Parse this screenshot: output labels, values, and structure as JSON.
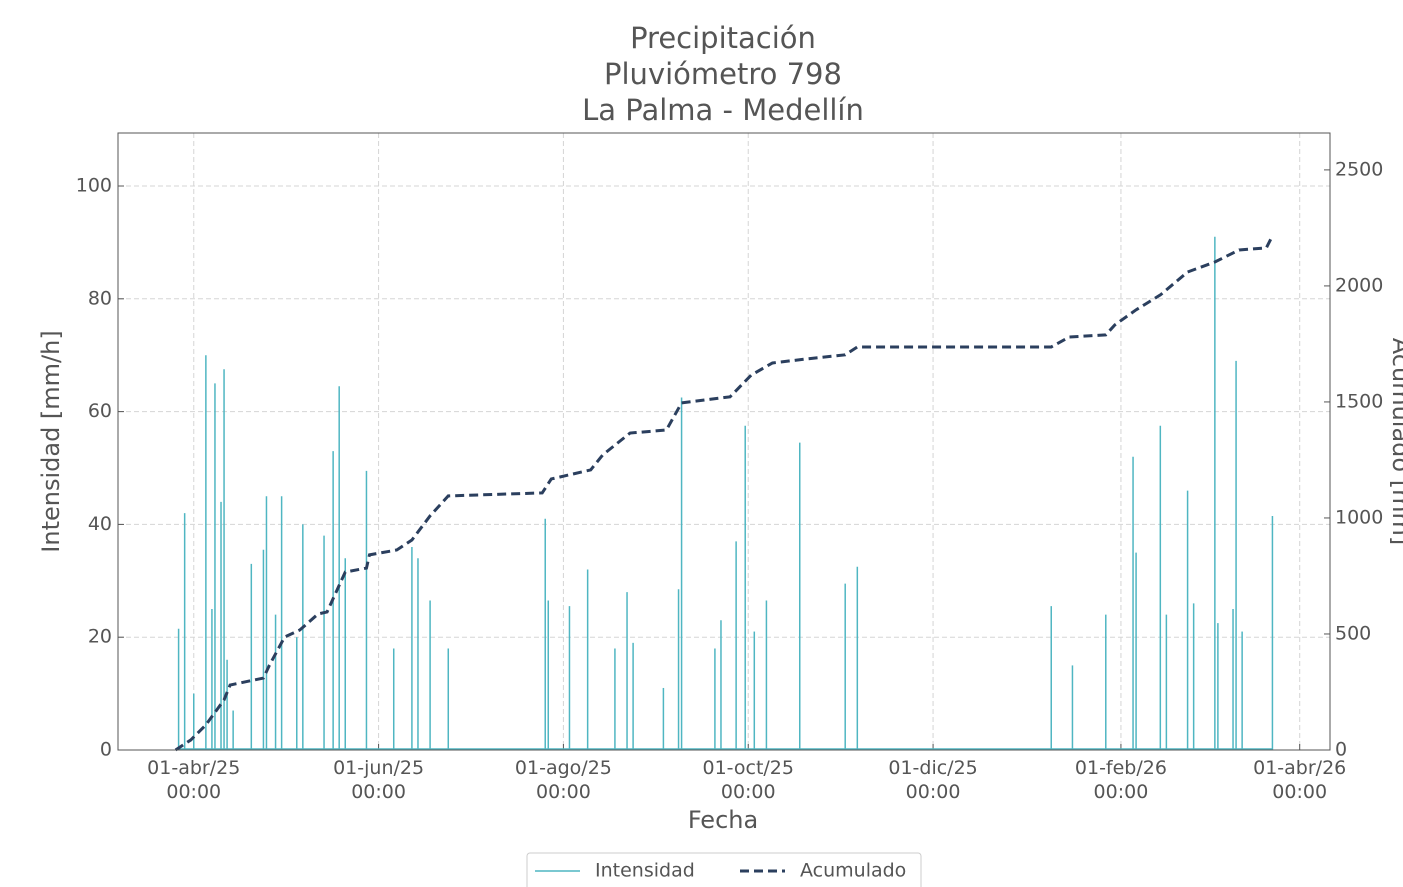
{
  "chart_data": {
    "type": "line",
    "title": "Precipitación\nPluviómetro 798\nLa Palma - Medellín",
    "xlabel": "Fecha",
    "ylabel": "Intensidad [mm/h]",
    "y2label": "Acumulado [mm]",
    "xlim": [
      "2025-03-07",
      "2026-04-11"
    ],
    "xticks": [
      {
        "value": "2025-04-01",
        "label": "01-abr/25\n00:00"
      },
      {
        "value": "2025-06-01",
        "label": "01-jun/25\n00:00"
      },
      {
        "value": "2025-08-01",
        "label": "01-ago/25\n00:00"
      },
      {
        "value": "2025-10-01",
        "label": "01-oct/25\n00:00"
      },
      {
        "value": "2025-12-01",
        "label": "01-dic/25\n00:00"
      },
      {
        "value": "2026-02-01",
        "label": "01-feb/26\n00:00"
      },
      {
        "value": "2026-04-01",
        "label": "01-abr/26\n00:00"
      }
    ],
    "ylim": [
      0,
      109.4
    ],
    "yticks": [
      0,
      20,
      40,
      60,
      80,
      100
    ],
    "y2lim": [
      0,
      2659
    ],
    "y2ticks": [
      0,
      500,
      1000,
      1500,
      2000,
      2500
    ],
    "grid": true,
    "legend": "bottom",
    "series": [
      {
        "name": "Intensidad",
        "color": "#4fb6c2",
        "style": "stem",
        "x": [
          "2025-03-27",
          "2025-03-29",
          "2025-04-01",
          "2025-04-05",
          "2025-04-07",
          "2025-04-08",
          "2025-04-10",
          "2025-04-11",
          "2025-04-12",
          "2025-04-14",
          "2025-04-20",
          "2025-04-24",
          "2025-04-25",
          "2025-04-28",
          "2025-04-30",
          "2025-05-05",
          "2025-05-07",
          "2025-05-14",
          "2025-05-17",
          "2025-05-19",
          "2025-05-21",
          "2025-05-28",
          "2025-06-06",
          "2025-06-12",
          "2025-06-14",
          "2025-06-18",
          "2025-06-24",
          "2025-07-26",
          "2025-07-27",
          "2025-08-03",
          "2025-08-09",
          "2025-08-18",
          "2025-08-22",
          "2025-08-24",
          "2025-09-03",
          "2025-09-08",
          "2025-09-09",
          "2025-09-20",
          "2025-09-22",
          "2025-09-27",
          "2025-09-30",
          "2025-10-03",
          "2025-10-07",
          "2025-10-18",
          "2025-11-02",
          "2025-11-06",
          "2026-01-09",
          "2026-01-16",
          "2026-01-27",
          "2026-02-05",
          "2026-02-06",
          "2026-02-14",
          "2026-02-16",
          "2026-02-23",
          "2026-02-25",
          "2026-03-04",
          "2026-03-05",
          "2026-03-10",
          "2026-03-11",
          "2026-03-13",
          "2026-03-23"
        ],
        "values": [
          21.5,
          42,
          10,
          70,
          25,
          65,
          44,
          67.5,
          16,
          7,
          33,
          35.5,
          45,
          24,
          45,
          20,
          40,
          38,
          53,
          64.5,
          34,
          49.5,
          18,
          36,
          34,
          26.5,
          18,
          41,
          26.5,
          25.5,
          32,
          18,
          28,
          19,
          11,
          28.5,
          62.5,
          18,
          23,
          37,
          57.5,
          21,
          26.5,
          54.5,
          29.5,
          32.5,
          25.5,
          15,
          24,
          52,
          35,
          57.5,
          24,
          46,
          26,
          91,
          22.5,
          25,
          69,
          21,
          41.5
        ]
      },
      {
        "name": "Acumulado",
        "color": "#2b3f5e",
        "style": "dashed",
        "axis": "y2",
        "x": [
          "2025-03-26",
          "2025-03-31",
          "2025-04-05",
          "2025-04-11",
          "2025-04-13",
          "2025-04-24",
          "2025-04-26",
          "2025-05-01",
          "2025-05-06",
          "2025-05-12",
          "2025-05-15",
          "2025-05-21",
          "2025-05-28",
          "2025-05-29",
          "2025-06-07",
          "2025-06-12",
          "2025-06-18",
          "2025-06-24",
          "2025-07-25",
          "2025-07-28",
          "2025-08-10",
          "2025-08-14",
          "2025-08-23",
          "2025-09-04",
          "2025-09-09",
          "2025-09-25",
          "2025-10-02",
          "2025-10-09",
          "2025-10-20",
          "2025-11-02",
          "2025-11-06",
          "2026-01-09",
          "2026-01-15",
          "2026-01-27",
          "2026-01-30",
          "2026-02-06",
          "2026-02-14",
          "2026-02-23",
          "2026-03-04",
          "2026-03-12",
          "2026-03-21",
          "2026-03-23"
        ],
        "values": [
          0,
          43,
          108,
          216,
          280,
          310,
          366,
          487,
          517,
          586,
          595,
          767,
          784,
          841,
          862,
          905,
          1009,
          1095,
          1108,
          1168,
          1207,
          1272,
          1366,
          1379,
          1496,
          1522,
          1616,
          1668,
          1685,
          1703,
          1737,
          1737,
          1780,
          1789,
          1832,
          1897,
          1961,
          2060,
          2103,
          2155,
          2164,
          2216
        ]
      }
    ]
  }
}
